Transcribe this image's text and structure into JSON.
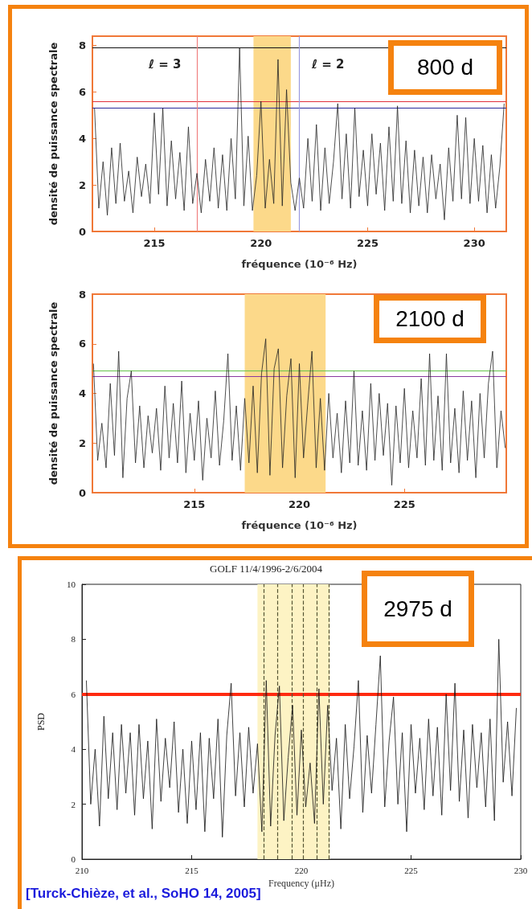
{
  "chart_data": [
    {
      "type": "line",
      "xlabel": "fréquence (10⁻⁶ Hz)",
      "ylabel": "densité de puissance spectrale",
      "xlim": [
        212.1,
        231.5
      ],
      "xticks": [
        215,
        220,
        225,
        230
      ],
      "ylim": [
        0,
        8.4
      ],
      "yticks": [
        0,
        2,
        4,
        6,
        8
      ],
      "annotations": [
        "800 d",
        "ℓ = 3",
        "ℓ = 2"
      ],
      "bands": [
        {
          "axis": "x",
          "from": 219.65,
          "to": 221.4,
          "color": "#fcd98a"
        }
      ],
      "ref_lines": [
        {
          "axis": "y",
          "value": 7.9,
          "color": "#111111"
        },
        {
          "axis": "y",
          "value": 5.6,
          "color": "#e0303a"
        },
        {
          "axis": "y",
          "value": 5.3,
          "color": "#2a2a9a"
        },
        {
          "axis": "x",
          "value": 217.0,
          "color": "#f08080"
        },
        {
          "axis": "x",
          "value": 221.8,
          "color": "#9a9ae0"
        }
      ],
      "series": [
        {
          "color": "#222222",
          "x": [
            212.2,
            212.4,
            212.6,
            212.8,
            213.0,
            213.2,
            213.4,
            213.6,
            213.8,
            214.0,
            214.2,
            214.4,
            214.6,
            214.8,
            215.0,
            215.2,
            215.4,
            215.6,
            215.8,
            216.0,
            216.2,
            216.4,
            216.6,
            216.8,
            217.0,
            217.2,
            217.4,
            217.6,
            217.8,
            218.0,
            218.2,
            218.4,
            218.6,
            218.8,
            219.0,
            219.2,
            219.4,
            219.6,
            219.8,
            220.0,
            220.2,
            220.4,
            220.6,
            220.8,
            221.0,
            221.2,
            221.4,
            221.6,
            221.8,
            222.0,
            222.2,
            222.4,
            222.6,
            222.8,
            223.0,
            223.2,
            223.4,
            223.6,
            223.8,
            224.0,
            224.2,
            224.4,
            224.6,
            224.8,
            225.0,
            225.2,
            225.4,
            225.6,
            225.8,
            226.0,
            226.2,
            226.4,
            226.6,
            226.8,
            227.0,
            227.2,
            227.4,
            227.6,
            227.8,
            228.0,
            228.2,
            228.4,
            228.6,
            228.8,
            229.0,
            229.2,
            229.4,
            229.6,
            229.8,
            230.0,
            230.2,
            230.4,
            230.6,
            230.8,
            231.0,
            231.2,
            231.4
          ],
          "values": [
            5.3,
            1.0,
            3.0,
            0.7,
            3.6,
            1.2,
            3.8,
            1.3,
            2.6,
            0.8,
            3.2,
            1.5,
            2.9,
            1.2,
            5.1,
            1.6,
            5.3,
            1.1,
            3.9,
            1.4,
            3.4,
            0.9,
            4.5,
            1.2,
            2.5,
            0.8,
            3.1,
            1.3,
            3.6,
            1.0,
            3.3,
            0.9,
            4.0,
            1.4,
            7.9,
            1.1,
            4.1,
            0.9,
            2.4,
            5.6,
            1.0,
            3.1,
            1.2,
            7.4,
            1.1,
            6.1,
            2.1,
            0.9,
            2.3,
            1.0,
            4.0,
            1.3,
            4.6,
            0.9,
            3.6,
            1.2,
            3.0,
            5.5,
            1.4,
            4.2,
            1.0,
            5.3,
            1.5,
            3.5,
            1.1,
            4.2,
            1.6,
            3.8,
            0.9,
            4.5,
            1.3,
            5.4,
            1.2,
            3.9,
            0.8,
            3.5,
            1.1,
            3.2,
            0.8,
            3.3,
            1.4,
            2.9,
            0.5,
            3.6,
            1.3,
            5.0,
            1.4,
            4.9,
            1.2,
            4.0,
            1.3,
            3.7,
            0.8,
            3.3,
            1.0,
            2.8,
            5.5
          ]
        }
      ]
    },
    {
      "type": "line",
      "xlabel": "fréquence (10⁻⁶ Hz)",
      "ylabel": "densité de puissance spectrale",
      "xlim": [
        210.15,
        229.85
      ],
      "xticks": [
        215,
        220,
        225
      ],
      "ylim": [
        0,
        8
      ],
      "yticks": [
        0,
        2,
        4,
        6,
        8
      ],
      "annotations": [
        "2100 d"
      ],
      "bands": [
        {
          "axis": "x",
          "from": 217.4,
          "to": 221.25,
          "color": "#fcd98a"
        }
      ],
      "ref_lines": [
        {
          "axis": "y",
          "value": 4.9,
          "color": "#66c24a"
        },
        {
          "axis": "y",
          "value": 4.7,
          "color": "#8a3aa0"
        }
      ],
      "series": [
        {
          "color": "#222222",
          "x": [
            210.2,
            210.4,
            210.6,
            210.8,
            211.0,
            211.2,
            211.4,
            211.6,
            211.8,
            212.0,
            212.2,
            212.4,
            212.6,
            212.8,
            213.0,
            213.2,
            213.4,
            213.6,
            213.8,
            214.0,
            214.2,
            214.4,
            214.6,
            214.8,
            215.0,
            215.2,
            215.4,
            215.6,
            215.8,
            216.0,
            216.2,
            216.4,
            216.6,
            216.8,
            217.0,
            217.2,
            217.4,
            217.6,
            217.8,
            218.0,
            218.2,
            218.4,
            218.6,
            218.8,
            219.0,
            219.2,
            219.4,
            219.6,
            219.8,
            220.0,
            220.2,
            220.4,
            220.6,
            220.8,
            221.0,
            221.2,
            221.4,
            221.6,
            221.8,
            222.0,
            222.2,
            222.4,
            222.6,
            222.8,
            223.0,
            223.2,
            223.4,
            223.6,
            223.8,
            224.0,
            224.2,
            224.4,
            224.6,
            224.8,
            225.0,
            225.2,
            225.4,
            225.6,
            225.8,
            226.0,
            226.2,
            226.4,
            226.6,
            226.8,
            227.0,
            227.2,
            227.4,
            227.6,
            227.8,
            228.0,
            228.2,
            228.4,
            228.6,
            228.8,
            229.0,
            229.2,
            229.4,
            229.6,
            229.8
          ],
          "values": [
            5.2,
            1.3,
            2.8,
            1.0,
            4.4,
            1.5,
            5.7,
            0.6,
            3.8,
            4.9,
            1.2,
            3.5,
            1.0,
            3.1,
            1.6,
            3.4,
            0.9,
            4.3,
            1.4,
            3.6,
            1.2,
            4.5,
            0.8,
            3.2,
            1.3,
            3.7,
            0.5,
            3.0,
            1.4,
            4.1,
            1.1,
            2.9,
            5.6,
            1.3,
            3.5,
            0.9,
            3.8,
            1.2,
            4.3,
            0.8,
            4.8,
            6.2,
            0.7,
            5.0,
            5.8,
            1.0,
            3.9,
            5.4,
            0.6,
            5.2,
            1.4,
            3.6,
            5.7,
            1.0,
            3.8,
            0.9,
            4.0,
            1.4,
            3.2,
            0.8,
            3.7,
            1.2,
            4.9,
            1.1,
            3.3,
            0.9,
            4.4,
            1.3,
            4.0,
            1.5,
            3.6,
            0.3,
            3.5,
            1.2,
            4.2,
            1.0,
            3.3,
            1.4,
            4.6,
            1.1,
            5.6,
            1.3,
            3.9,
            0.9,
            5.6,
            1.2,
            3.4,
            0.8,
            4.1,
            1.3,
            3.7,
            0.6,
            4.0,
            1.4,
            4.4,
            5.7,
            1.0,
            3.3,
            1.8
          ]
        }
      ]
    },
    {
      "type": "line",
      "title": "GOLF 11/4/1996-2/6/2004",
      "xlabel": "Frequency (μHz)",
      "ylabel": "PSD",
      "xlim": [
        210,
        230
      ],
      "xticks": [
        210,
        215,
        220,
        225,
        230
      ],
      "ylim": [
        0,
        10
      ],
      "yticks": [
        0,
        2,
        4,
        6,
        8,
        10
      ],
      "annotations": [
        "2975 d",
        "[Turck-Chièze, et al., SoHO 14, 2005]"
      ],
      "bands": [
        {
          "axis": "x",
          "from": 218.0,
          "to": 221.3,
          "color": "#fdf3c4"
        }
      ],
      "ref_lines": [
        {
          "axis": "y",
          "value": 6,
          "color": "#ff2a10"
        },
        {
          "axis": "x",
          "value": 218.3,
          "color": "#555533",
          "line_style": "dashed"
        },
        {
          "axis": "x",
          "value": 218.92,
          "color": "#555533",
          "line_style": "dashed"
        },
        {
          "axis": "x",
          "value": 219.56,
          "color": "#555533",
          "line_style": "dashed"
        },
        {
          "axis": "x",
          "value": 220.1,
          "color": "#555533",
          "line_style": "dashed"
        },
        {
          "axis": "x",
          "value": 220.7,
          "color": "#555533",
          "line_style": "dashed"
        },
        {
          "axis": "x",
          "value": 221.26,
          "color": "#555533",
          "line_style": "dashed"
        }
      ],
      "series": [
        {
          "color": "#111111",
          "x": [
            210.2,
            210.4,
            210.6,
            210.8,
            211.0,
            211.2,
            211.4,
            211.6,
            211.8,
            212.0,
            212.2,
            212.4,
            212.6,
            212.8,
            213.0,
            213.2,
            213.4,
            213.6,
            213.8,
            214.0,
            214.2,
            214.4,
            214.6,
            214.8,
            215.0,
            215.2,
            215.4,
            215.6,
            215.8,
            216.0,
            216.2,
            216.4,
            216.6,
            216.8,
            217.0,
            217.2,
            217.4,
            217.6,
            217.8,
            218.0,
            218.2,
            218.4,
            218.6,
            218.8,
            219.0,
            219.2,
            219.4,
            219.6,
            219.8,
            220.0,
            220.2,
            220.4,
            220.6,
            220.8,
            221.0,
            221.2,
            221.4,
            221.6,
            221.8,
            222.0,
            222.2,
            222.4,
            222.6,
            222.8,
            223.0,
            223.2,
            223.4,
            223.6,
            223.8,
            224.0,
            224.2,
            224.4,
            224.6,
            224.8,
            225.0,
            225.2,
            225.4,
            225.6,
            225.8,
            226.0,
            226.2,
            226.4,
            226.6,
            226.8,
            227.0,
            227.2,
            227.4,
            227.6,
            227.8,
            228.0,
            228.2,
            228.4,
            228.6,
            228.8,
            229.0,
            229.2,
            229.4,
            229.6,
            229.8
          ],
          "values": [
            6.5,
            2.0,
            4.0,
            1.2,
            5.2,
            2.2,
            4.6,
            1.8,
            4.9,
            2.4,
            4.6,
            1.6,
            4.9,
            2.2,
            4.3,
            1.1,
            5.1,
            2.1,
            4.4,
            2.6,
            5.0,
            1.7,
            4.0,
            1.3,
            4.3,
            1.8,
            4.6,
            1.0,
            4.4,
            2.2,
            5.1,
            0.8,
            4.5,
            6.4,
            2.3,
            4.6,
            1.9,
            4.8,
            2.4,
            4.2,
            1.0,
            6.5,
            1.2,
            4.5,
            6.3,
            1.4,
            3.7,
            5.6,
            1.6,
            4.7,
            1.9,
            3.5,
            1.3,
            6.2,
            2.0,
            5.6,
            2.5,
            4.4,
            1.1,
            4.9,
            2.2,
            4.1,
            6.5,
            1.7,
            4.5,
            2.4,
            4.9,
            7.4,
            1.9,
            4.3,
            5.9,
            2.0,
            4.6,
            1.0,
            4.9,
            2.4,
            4.4,
            1.8,
            5.1,
            2.3,
            4.8,
            1.6,
            6.0,
            2.5,
            6.4,
            2.1,
            4.7,
            1.5,
            4.9,
            2.6,
            4.6,
            1.9,
            5.1,
            1.4,
            8.0,
            2.8,
            5.0,
            2.3,
            5.5
          ]
        }
      ]
    }
  ]
}
